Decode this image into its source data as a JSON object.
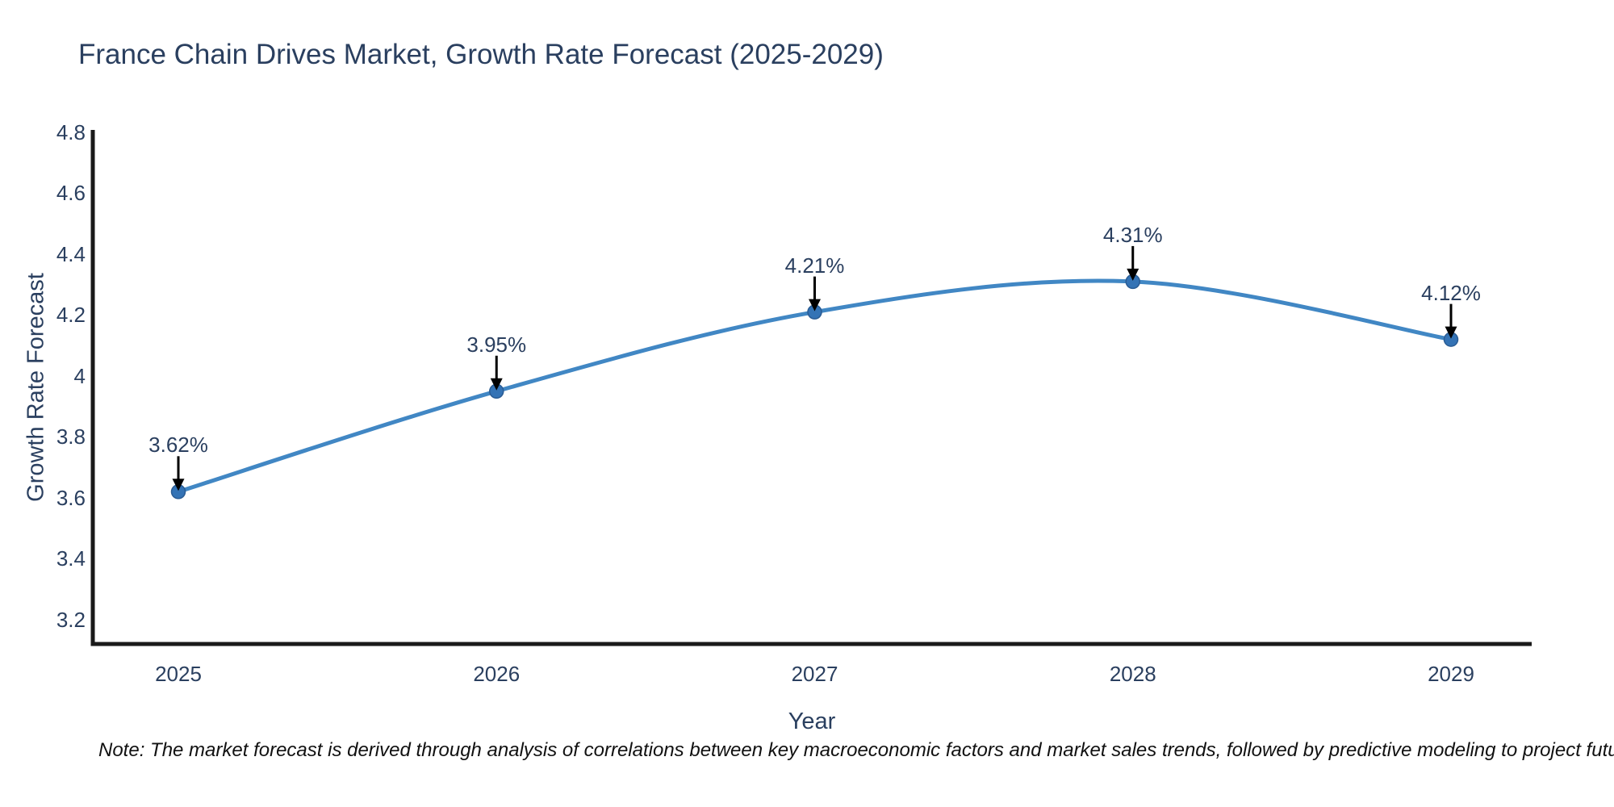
{
  "title": "France Chain Drives Market, Growth Rate Forecast (2025-2029)",
  "note": "Note: The market forecast is derived through analysis of correlations between key macroeconomic factors and market sales trends, followed by predictive modeling to project future sales",
  "chart_data": {
    "type": "line",
    "title": "France Chain Drives Market, Growth Rate Forecast (2025-2029)",
    "xlabel": "Year",
    "ylabel": "Growth Rate Forecast",
    "categories": [
      "2025",
      "2026",
      "2027",
      "2028",
      "2029"
    ],
    "series": [
      {
        "name": "Growth Rate Forecast",
        "values": [
          3.62,
          3.95,
          4.21,
          4.31,
          4.12
        ]
      }
    ],
    "point_labels": [
      "3.62%",
      "3.95%",
      "4.21%",
      "4.31%",
      "4.12%"
    ],
    "yticks": [
      3.2,
      3.4,
      3.6,
      3.8,
      4,
      4.2,
      4.4,
      4.6,
      4.8
    ],
    "ytick_labels": [
      "3.2",
      "3.4",
      "3.6",
      "3.8",
      "4",
      "4.2",
      "4.4",
      "4.6",
      "4.8"
    ],
    "ylim": [
      3.12,
      4.8
    ],
    "grid": false,
    "legend_position": "none",
    "line_shape": "spline",
    "annotation_arrows": true,
    "colors": {
      "line": "#4187c4",
      "marker": "#3473b5",
      "marker_edge": "#2a5c94",
      "axis_line": "#1a1a1a",
      "text": "#2a3f5f",
      "arrow": "#000000",
      "background": "#ffffff"
    }
  }
}
